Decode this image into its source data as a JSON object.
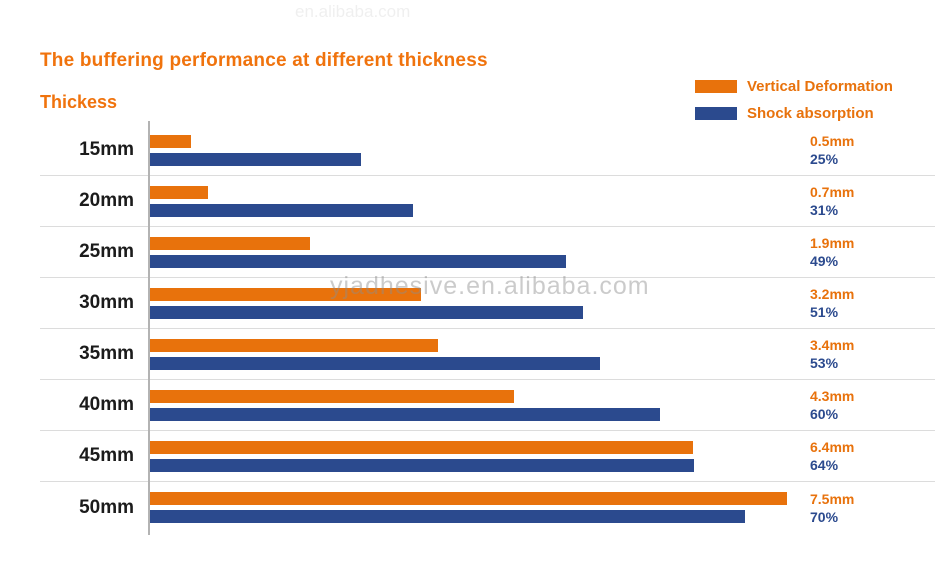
{
  "title": "The buffering performance at different thickness",
  "axis_label": "Thickess",
  "legend": [
    {
      "label": "Vertical Deformation",
      "color": "#E8720C"
    },
    {
      "label": "Shock absorption",
      "color": "#2B4A8E"
    }
  ],
  "watermarks": {
    "top": "en.alibaba.com",
    "center": "yjadhesive.en.alibaba.com"
  },
  "colors": {
    "orange": "#E8720C",
    "blue": "#2B4A8E",
    "title_orange": "#F0730D",
    "separator": "#DCDCDC",
    "axis_line": "#B3B3B3"
  },
  "chart_data": {
    "type": "bar",
    "orientation": "horizontal",
    "title": "The buffering performance at different thickness",
    "ylabel": "Thickess",
    "legend_position": "top-right",
    "grid": "horizontal-row-separators",
    "value_labels_position": "right",
    "categories": [
      "15mm",
      "20mm",
      "25mm",
      "30mm",
      "35mm",
      "40mm",
      "45mm",
      "50mm"
    ],
    "series": [
      {
        "name": "Vertical Deformation",
        "unit": "mm",
        "color": "#E8720C",
        "values": [
          0.5,
          0.7,
          1.9,
          3.2,
          3.4,
          4.3,
          6.4,
          7.5
        ],
        "labels": [
          "0.5mm",
          "0.7mm",
          "1.9mm",
          "3.2mm",
          "3.4mm",
          "4.3mm",
          "6.4mm",
          "7.5mm"
        ]
      },
      {
        "name": "Shock absorption",
        "unit": "%",
        "color": "#2B4A8E",
        "values": [
          25,
          31,
          49,
          51,
          53,
          60,
          64,
          70
        ],
        "labels": [
          "25%",
          "31%",
          "49%",
          "51%",
          "53%",
          "60%",
          "64%",
          "70%"
        ]
      }
    ]
  }
}
